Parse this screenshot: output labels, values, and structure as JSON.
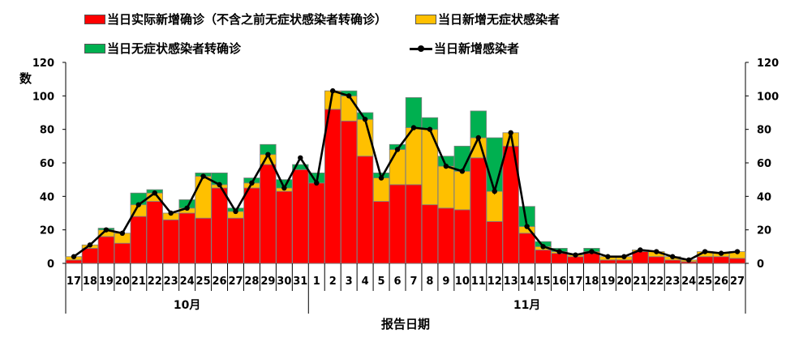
{
  "legend": {
    "confirmed": "当日实际新增确诊（不含之前无症状感染者转确诊）",
    "asymptomatic": "当日新增无症状感染者",
    "converted": "当日无症状感染者转确诊",
    "total": "当日新增感染者"
  },
  "colors": {
    "confirmed": "#ff0000",
    "asymptomatic": "#ffc000",
    "converted": "#00b050",
    "total": "#000000",
    "bar_edge": "#7f7f7f"
  },
  "chart_data": {
    "type": "bar",
    "stacked": true,
    "ylabel": "数",
    "xlabel": "报告日期",
    "ylim": [
      0,
      120
    ],
    "yticks": [
      0,
      20,
      40,
      60,
      80,
      100,
      120
    ],
    "right_yticks": [
      0,
      20,
      40,
      60,
      80,
      100,
      120
    ],
    "categories": [
      "17",
      "18",
      "19",
      "20",
      "21",
      "22",
      "23",
      "24",
      "25",
      "26",
      "27",
      "28",
      "29",
      "30",
      "31",
      "1",
      "2",
      "3",
      "4",
      "5",
      "6",
      "7",
      "8",
      "9",
      "10",
      "11",
      "12",
      "13",
      "14",
      "15",
      "16",
      "17",
      "18",
      "19",
      "20",
      "21",
      "22",
      "23",
      "24",
      "25",
      "26",
      "27"
    ],
    "month_groups": [
      {
        "label": "10月",
        "start": 0,
        "end": 15
      },
      {
        "label": "11月",
        "start": 15,
        "end": 42
      }
    ],
    "series": [
      {
        "name": "当日实际新增确诊（不含之前无症状感染者转确诊）",
        "key": "confirmed",
        "values": [
          2,
          9,
          16,
          12,
          28,
          37,
          26,
          30,
          27,
          45,
          27,
          45,
          59,
          43,
          56,
          48,
          92,
          85,
          64,
          37,
          47,
          47,
          35,
          33,
          32,
          63,
          25,
          70,
          18,
          8,
          6,
          4,
          6,
          2,
          2,
          7,
          4,
          2,
          1,
          4,
          4,
          3
        ]
      },
      {
        "name": "当日新增无症状感染者",
        "key": "asymptomatic",
        "values": [
          2,
          2,
          4,
          6,
          7,
          5,
          4,
          3,
          25,
          2,
          4,
          3,
          6,
          2,
          0,
          0,
          11,
          15,
          22,
          14,
          21,
          34,
          45,
          25,
          23,
          12,
          18,
          8,
          4,
          2,
          1,
          1,
          1,
          2,
          2,
          1,
          3,
          2,
          1,
          3,
          2,
          4
        ]
      },
      {
        "name": "当日无症状感染者转确诊",
        "key": "converted",
        "values": [
          0,
          0,
          1,
          0,
          7,
          2,
          0,
          5,
          2,
          7,
          2,
          3,
          6,
          5,
          3,
          6,
          0,
          3,
          4,
          3,
          3,
          18,
          7,
          6,
          15,
          16,
          32,
          0,
          12,
          3,
          2,
          0,
          2,
          0,
          0,
          0,
          0,
          0,
          0,
          0,
          0,
          0
        ]
      }
    ],
    "line": {
      "name": "当日新增感染者",
      "values": [
        4,
        11,
        20,
        18,
        35,
        42,
        30,
        33,
        52,
        47,
        31,
        48,
        65,
        45,
        63,
        48,
        103,
        100,
        86,
        51,
        68,
        81,
        80,
        58,
        55,
        75,
        43,
        78,
        22,
        10,
        7,
        5,
        7,
        4,
        4,
        8,
        7,
        4,
        2,
        7,
        6,
        7
      ]
    }
  }
}
